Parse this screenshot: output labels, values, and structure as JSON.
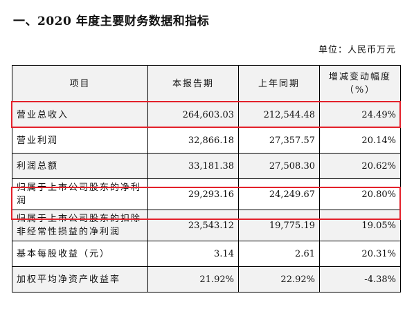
{
  "section_title": "一、2020 年度主要财务数据和指标",
  "unit_label": "单位：人民币万元",
  "table": {
    "headers": {
      "item": "项目",
      "current": "本报告期",
      "previous": "上年同期",
      "change": "增减变动幅度（%）"
    },
    "rows": [
      {
        "item": "营业总收入",
        "current": "264,603.03",
        "previous": "212,544.48",
        "change": "24.49%"
      },
      {
        "item": "营业利润",
        "current": "32,866.18",
        "previous": "27,357.57",
        "change": "20.14%"
      },
      {
        "item": "利润总额",
        "current": "33,181.38",
        "previous": "27,508.30",
        "change": "20.62%"
      },
      {
        "item": "归属于上市公司股东的净利润",
        "current": "29,293.16",
        "previous": "24,249.67",
        "change": "20.80%"
      },
      {
        "item": "归属于上市公司股东的扣除非经常性损益的净利润",
        "current": "23,543.12",
        "previous": "19,775.19",
        "change": "19.05%"
      },
      {
        "item": "基本每股收益（元）",
        "current": "3.14",
        "previous": "2.61",
        "change": "20.31%"
      },
      {
        "item": "加权平均净资产收益率",
        "current": "21.92%",
        "previous": "22.92%",
        "change": "-4.38%"
      }
    ]
  },
  "highlight_color": "#e3202a"
}
